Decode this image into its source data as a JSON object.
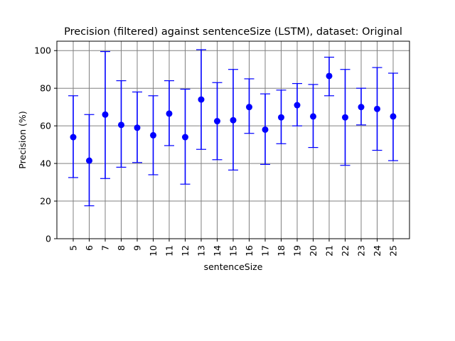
{
  "chart_data": {
    "type": "scatter",
    "title": "Precision (filtered) against sentenceSize (LSTM), dataset: Original",
    "xlabel": "sentenceSize",
    "ylabel": "Precision (%)",
    "ylim": [
      0,
      105
    ],
    "yticks": [
      0,
      20,
      40,
      60,
      80,
      100
    ],
    "grid": true,
    "x": [
      "5",
      "6",
      "7",
      "8",
      "9",
      "10",
      "11",
      "12",
      "13",
      "14",
      "15",
      "16",
      "17",
      "18",
      "19",
      "20",
      "21",
      "22",
      "23",
      "24",
      "25"
    ],
    "series": [
      {
        "marker_color": "#0000ff",
        "values": [
          54,
          41.5,
          66,
          60.5,
          59,
          55,
          66.5,
          54,
          74,
          62.5,
          63,
          70,
          58,
          64.5,
          71,
          65,
          86.5,
          64.5,
          70,
          69,
          65
        ],
        "error_low": [
          32.5,
          17.5,
          32,
          38,
          40.5,
          34,
          49.5,
          29,
          47.5,
          42,
          36.5,
          56,
          39.5,
          50.5,
          60,
          48.5,
          76,
          39,
          60.5,
          47,
          41.5
        ],
        "error_high": [
          76,
          66,
          99.5,
          84,
          78,
          76,
          84,
          79.5,
          100.5,
          83,
          90,
          85,
          77,
          79,
          82.5,
          82,
          96.5,
          90,
          80,
          91,
          88
        ]
      }
    ]
  }
}
